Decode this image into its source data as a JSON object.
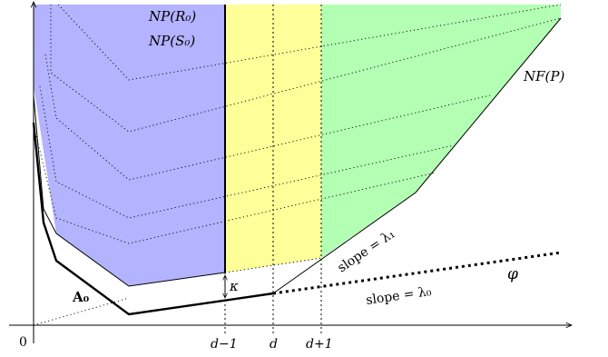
{
  "labels": {
    "np_r0": "NP(R₀)",
    "np_s0": "NP(S₀)",
    "nf_p": "NF(P)",
    "slope1": "slope = λ₁",
    "slope0": "slope = λ₀",
    "phi": "φ",
    "kappa": "κ",
    "a0": "A₀",
    "origin": "0",
    "tick_d_minus_1": "d−1",
    "tick_d": "d",
    "tick_d_plus_1": "d+1"
  },
  "colors": {
    "blue_region": "#b3b3ff",
    "yellow_region": "#ffff99",
    "green_region": "#b3ffb3",
    "line": "#000000"
  }
}
